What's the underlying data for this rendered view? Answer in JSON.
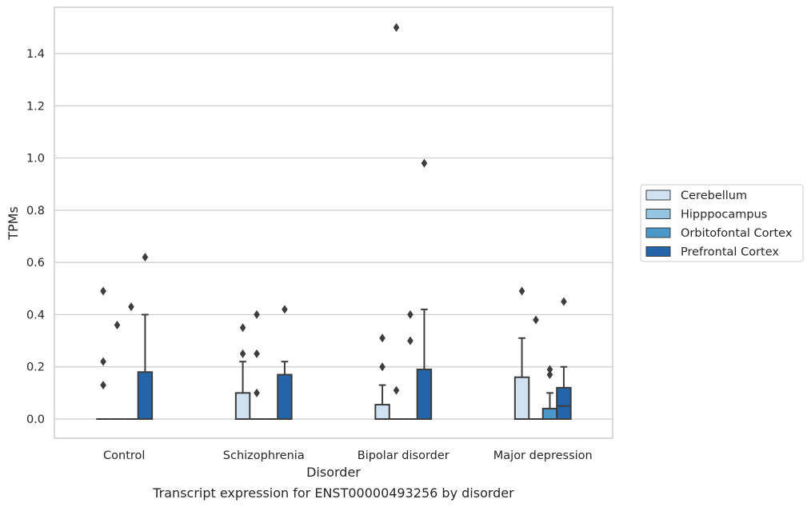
{
  "chart_data": {
    "type": "box",
    "caption": "Transcript expression for ENST00000493256 by disorder",
    "xlabel": "Disorder",
    "ylabel": "TPMs",
    "ylim": [
      -0.07,
      1.58
    ],
    "yticks": [
      "0.0",
      "0.2",
      "0.4",
      "0.6",
      "0.8",
      "1.0",
      "1.2",
      "1.4"
    ],
    "grid": true,
    "legend_position": "right",
    "categories": [
      "Control",
      "Schizophrenia",
      "Bipolar disorder",
      "Major depression"
    ],
    "series": [
      {
        "name": "Cerebellum",
        "color": "#d0e1f2",
        "boxes": [
          {
            "whislo": 0,
            "q1": 0,
            "med": 0,
            "q3": 0,
            "whishi": 0,
            "fliers": [
              0.49,
              0.22,
              0.13
            ]
          },
          {
            "whislo": 0,
            "q1": 0,
            "med": 0,
            "q3": 0.1,
            "whishi": 0.22,
            "fliers": [
              0.35,
              0.25
            ]
          },
          {
            "whislo": 0,
            "q1": 0,
            "med": 0,
            "q3": 0.055,
            "whishi": 0.13,
            "fliers": [
              0.31,
              0.2
            ]
          },
          {
            "whislo": 0,
            "q1": 0,
            "med": 0,
            "q3": 0.16,
            "whishi": 0.31,
            "fliers": [
              0.49
            ]
          }
        ]
      },
      {
        "name": "Hipppocampus",
        "color": "#94c4df",
        "boxes": [
          {
            "whislo": 0,
            "q1": 0,
            "med": 0,
            "q3": 0,
            "whishi": 0,
            "fliers": [
              0.36
            ]
          },
          {
            "whislo": 0,
            "q1": 0,
            "med": 0,
            "q3": 0,
            "whishi": 0,
            "fliers": [
              0.4,
              0.25,
              0.1
            ]
          },
          {
            "whislo": 0,
            "q1": 0,
            "med": 0,
            "q3": 0,
            "whishi": 0,
            "fliers": [
              1.5,
              0.11
            ]
          },
          {
            "whislo": 0,
            "q1": 0,
            "med": 0,
            "q3": 0,
            "whishi": 0,
            "fliers": [
              0.38
            ]
          }
        ]
      },
      {
        "name": "Orbitofontal Cortex",
        "color": "#4a98c9",
        "boxes": [
          {
            "whislo": 0,
            "q1": 0,
            "med": 0,
            "q3": 0,
            "whishi": 0,
            "fliers": [
              0.43
            ]
          },
          {
            "whislo": 0,
            "q1": 0,
            "med": 0,
            "q3": 0,
            "whishi": 0,
            "fliers": []
          },
          {
            "whislo": 0,
            "q1": 0,
            "med": 0,
            "q3": 0,
            "whishi": 0,
            "fliers": [
              0.4,
              0.3
            ]
          },
          {
            "whislo": 0,
            "q1": 0,
            "med": 0,
            "q3": 0.04,
            "whishi": 0.1,
            "fliers": [
              0.19,
              0.17
            ]
          }
        ]
      },
      {
        "name": "Prefrontal Cortex",
        "color": "#2464a8",
        "boxes": [
          {
            "whislo": 0,
            "q1": 0,
            "med": 0,
            "q3": 0.18,
            "whishi": 0.4,
            "fliers": [
              0.62
            ]
          },
          {
            "whislo": 0,
            "q1": 0,
            "med": 0,
            "q3": 0.17,
            "whishi": 0.22,
            "fliers": [
              0.42
            ]
          },
          {
            "whislo": 0,
            "q1": 0,
            "med": 0,
            "q3": 0.19,
            "whishi": 0.42,
            "fliers": [
              0.98
            ]
          },
          {
            "whislo": 0,
            "q1": 0,
            "med": 0.05,
            "q3": 0.12,
            "whishi": 0.2,
            "fliers": [
              0.45
            ]
          }
        ]
      }
    ]
  }
}
